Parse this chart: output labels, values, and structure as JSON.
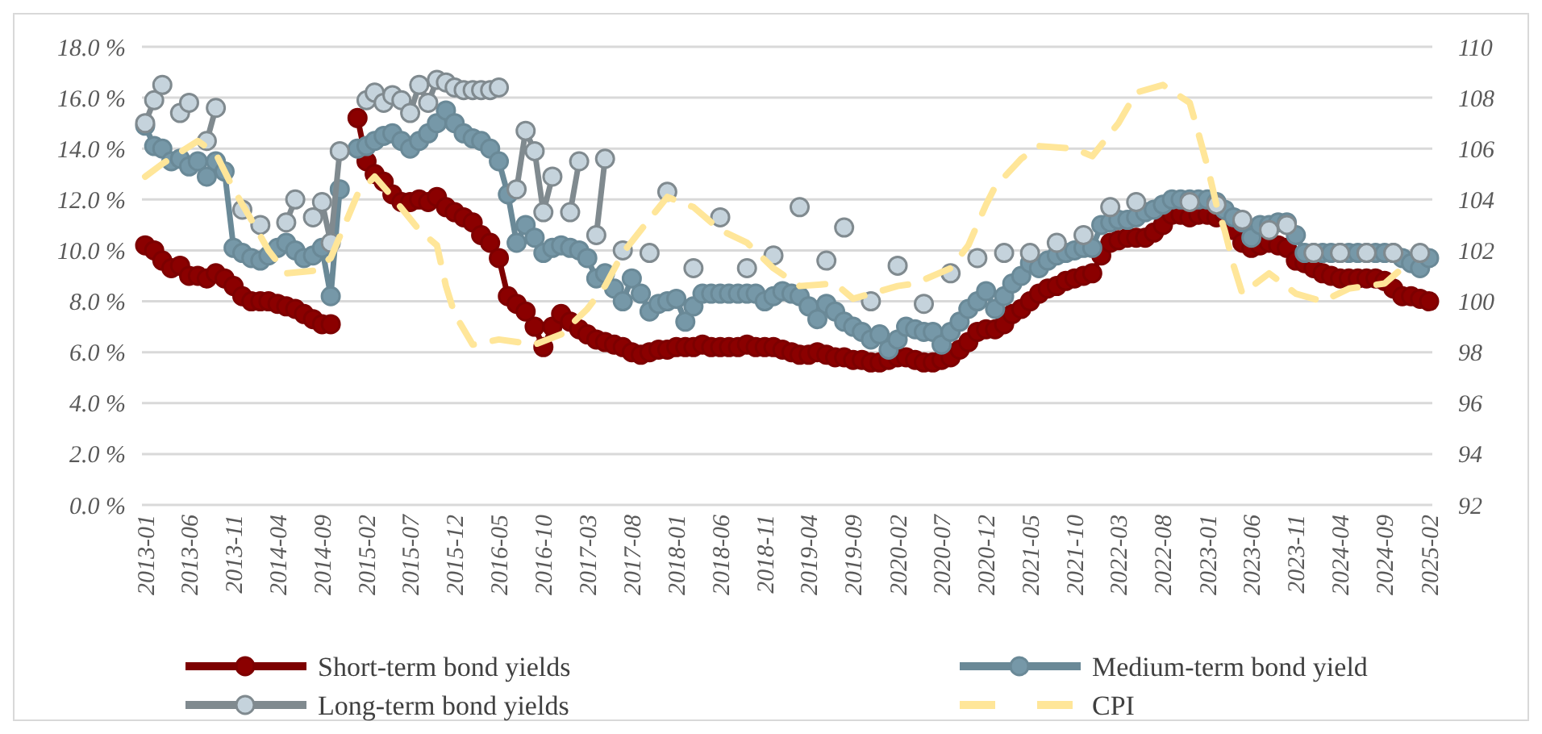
{
  "chart_data": {
    "type": "line",
    "x": [
      "2013-01",
      "2013-02",
      "2013-03",
      "2013-04",
      "2013-05",
      "2013-06",
      "2013-07",
      "2013-08",
      "2013-09",
      "2013-10",
      "2013-11",
      "2013-12",
      "2014-01",
      "2014-02",
      "2014-03",
      "2014-04",
      "2014-05",
      "2014-06",
      "2014-07",
      "2014-08",
      "2014-09",
      "2014-10",
      "2014-11",
      "2014-12",
      "2015-01",
      "2015-02",
      "2015-03",
      "2015-04",
      "2015-05",
      "2015-06",
      "2015-07",
      "2015-08",
      "2015-09",
      "2015-10",
      "2015-11",
      "2015-12",
      "2016-01",
      "2016-02",
      "2016-03",
      "2016-04",
      "2016-05",
      "2016-06",
      "2016-07",
      "2016-08",
      "2016-09",
      "2016-10",
      "2016-11",
      "2016-12",
      "2017-01",
      "2017-02",
      "2017-03",
      "2017-04",
      "2017-05",
      "2017-06",
      "2017-07",
      "2017-08",
      "2017-09",
      "2017-10",
      "2017-11",
      "2017-12",
      "2018-01",
      "2018-02",
      "2018-03",
      "2018-04",
      "2018-05",
      "2018-06",
      "2018-07",
      "2018-08",
      "2018-09",
      "2018-10",
      "2018-11",
      "2018-12",
      "2019-01",
      "2019-02",
      "2019-03",
      "2019-04",
      "2019-05",
      "2019-06",
      "2019-07",
      "2019-08",
      "2019-09",
      "2019-10",
      "2019-11",
      "2019-12",
      "2020-01",
      "2020-02",
      "2020-03",
      "2020-04",
      "2020-05",
      "2020-06",
      "2020-07",
      "2020-08",
      "2020-09",
      "2020-10",
      "2020-11",
      "2020-12",
      "2021-01",
      "2021-02",
      "2021-03",
      "2021-04",
      "2021-05",
      "2021-06",
      "2021-07",
      "2021-08",
      "2021-09",
      "2021-10",
      "2021-11",
      "2021-12",
      "2022-01",
      "2022-02",
      "2022-03",
      "2022-04",
      "2022-05",
      "2022-06",
      "2022-07",
      "2022-08",
      "2022-09",
      "2022-10",
      "2022-11",
      "2022-12",
      "2023-01",
      "2023-02",
      "2023-03",
      "2023-04",
      "2023-05",
      "2023-06",
      "2023-07",
      "2023-08",
      "2023-09",
      "2023-10",
      "2023-11",
      "2023-12",
      "2024-01",
      "2024-02",
      "2024-03",
      "2024-04",
      "2024-05",
      "2024-06",
      "2024-07",
      "2024-08",
      "2024-09",
      "2024-10",
      "2024-11",
      "2024-12",
      "2025-01",
      "2025-02"
    ],
    "xlim": [
      "2013-01",
      "2025-02"
    ],
    "xticks": [
      "2013-01",
      "2013-06",
      "2013-11",
      "2014-04",
      "2014-09",
      "2015-02",
      "2015-07",
      "2015-12",
      "2016-05",
      "2016-10",
      "2017-03",
      "2017-08",
      "2018-01",
      "2018-06",
      "2018-11",
      "2019-04",
      "2019-09",
      "2020-02",
      "2020-07",
      "2020-12",
      "2021-05",
      "2021-10",
      "2022-03",
      "2022-08",
      "2023-01",
      "2023-06",
      "2023-11",
      "2024-04",
      "2024-09",
      "2025-02"
    ],
    "ylim": [
      0,
      18
    ],
    "yticks": [
      {
        "value": 0,
        "label": "0.0 %"
      },
      {
        "value": 2,
        "label": "2.0 %"
      },
      {
        "value": 4,
        "label": "4.0 %"
      },
      {
        "value": 6,
        "label": "6.0 %"
      },
      {
        "value": 8,
        "label": "8.0 %"
      },
      {
        "value": 10,
        "label": "10.0 %"
      },
      {
        "value": 12,
        "label": "12.0 %"
      },
      {
        "value": 14,
        "label": "14.0 %"
      },
      {
        "value": 16,
        "label": "16.0 %"
      },
      {
        "value": 18,
        "label": "18.0 %"
      }
    ],
    "y2lim": [
      92,
      110
    ],
    "y2ticks": [
      92,
      94,
      96,
      98,
      100,
      102,
      104,
      106,
      108,
      110
    ],
    "grid": "y",
    "legend": "bottom",
    "marker": "circle",
    "line_style": "solid",
    "series": [
      {
        "name": "Short-term bond yields",
        "color": "#8b0000",
        "values": [
          10.2,
          10.0,
          9.6,
          9.3,
          9.4,
          9.0,
          9.0,
          8.9,
          9.1,
          8.9,
          8.6,
          8.2,
          8.0,
          8.0,
          8.0,
          7.9,
          7.8,
          7.7,
          7.5,
          7.3,
          7.1,
          7.1,
          null,
          null,
          15.2,
          13.5,
          13.0,
          12.7,
          12.2,
          11.9,
          11.9,
          12.0,
          11.9,
          12.1,
          11.7,
          11.5,
          11.3,
          11.1,
          10.6,
          10.3,
          9.7,
          8.2,
          7.9,
          7.6,
          7.0,
          6.2,
          7.0,
          7.5,
          7.2,
          6.9,
          6.7,
          6.5,
          6.4,
          6.3,
          6.2,
          6.0,
          5.9,
          6.0,
          6.1,
          6.1,
          6.2,
          6.2,
          6.2,
          6.3,
          6.2,
          6.2,
          6.2,
          6.2,
          6.3,
          6.2,
          6.2,
          6.2,
          6.1,
          6.0,
          5.9,
          5.9,
          6.0,
          5.9,
          5.8,
          5.8,
          5.7,
          5.7,
          5.6,
          5.6,
          5.7,
          5.8,
          5.8,
          5.7,
          5.6,
          5.6,
          5.7,
          5.8,
          6.1,
          6.4,
          6.8,
          6.9,
          6.9,
          7.1,
          7.5,
          7.7,
          8.0,
          8.3,
          8.5,
          8.6,
          8.8,
          8.9,
          9.0,
          9.1,
          9.8,
          10.3,
          10.4,
          10.5,
          10.5,
          10.5,
          10.7,
          11.0,
          11.4,
          11.4,
          11.3,
          11.4,
          11.4,
          11.3,
          11.4,
          10.8,
          10.3,
          10.1,
          10.2,
          10.3,
          10.2,
          10.1,
          9.6,
          9.5,
          9.3,
          9.1,
          9.0,
          8.9,
          8.9,
          8.9,
          8.9,
          8.9,
          8.8,
          8.5,
          8.2,
          8.2,
          8.1,
          8.0
        ]
      },
      {
        "name": "Medium-term bond yield",
        "color": "#7698a8",
        "values": [
          14.9,
          14.1,
          14.0,
          13.5,
          13.6,
          13.3,
          13.5,
          12.9,
          13.5,
          13.1,
          10.1,
          9.9,
          9.7,
          9.6,
          9.8,
          10.1,
          10.3,
          10.0,
          9.7,
          9.8,
          10.1,
          8.2,
          12.4,
          null,
          14.0,
          14.1,
          14.3,
          14.5,
          14.6,
          14.3,
          14.0,
          14.3,
          14.6,
          15.0,
          15.5,
          15.0,
          14.6,
          14.4,
          14.3,
          14.0,
          13.5,
          12.2,
          10.3,
          11.0,
          10.5,
          9.9,
          10.1,
          10.2,
          10.1,
          10.0,
          9.7,
          8.9,
          9.1,
          8.5,
          8.0,
          8.9,
          8.3,
          7.6,
          7.9,
          8.0,
          8.1,
          7.2,
          7.8,
          8.3,
          8.3,
          8.3,
          8.3,
          8.3,
          8.3,
          8.3,
          8.0,
          8.2,
          8.4,
          8.3,
          8.2,
          7.8,
          7.3,
          7.9,
          7.6,
          7.2,
          7.0,
          6.8,
          6.5,
          6.7,
          6.1,
          6.5,
          7.0,
          6.9,
          6.8,
          6.8,
          6.3,
          6.8,
          7.2,
          7.7,
          8.0,
          8.4,
          7.7,
          8.2,
          8.7,
          9.0,
          9.5,
          9.3,
          9.6,
          9.8,
          9.9,
          10.0,
          10.1,
          10.1,
          11.0,
          11.1,
          11.2,
          11.2,
          11.3,
          11.5,
          11.6,
          11.8,
          12.0,
          12.0,
          12.0,
          12.0,
          12.0,
          11.9,
          11.6,
          11.3,
          11.1,
          10.5,
          11.0,
          11.0,
          11.1,
          11.1,
          10.6,
          9.9,
          9.9,
          9.9,
          9.9,
          9.9,
          9.9,
          9.9,
          9.9,
          9.9,
          9.9,
          9.9,
          9.7,
          9.5,
          9.3,
          9.7
        ]
      },
      {
        "name": "Long-term bond yields",
        "color": "#c5d3dc",
        "values": [
          15.0,
          15.9,
          16.5,
          null,
          15.4,
          15.8,
          null,
          14.3,
          15.6,
          null,
          null,
          11.6,
          null,
          11.0,
          null,
          null,
          11.1,
          12.0,
          null,
          11.3,
          11.9,
          10.3,
          13.9,
          null,
          null,
          15.9,
          16.2,
          15.8,
          16.1,
          15.9,
          15.4,
          16.5,
          15.8,
          16.7,
          16.6,
          16.4,
          16.3,
          16.3,
          16.3,
          16.3,
          16.4,
          null,
          12.4,
          14.7,
          13.9,
          11.5,
          12.9,
          null,
          11.5,
          13.5,
          null,
          10.6,
          13.6,
          null,
          10.0,
          null,
          null,
          9.9,
          null,
          12.3,
          null,
          null,
          9.3,
          null,
          null,
          11.3,
          null,
          null,
          9.3,
          null,
          null,
          9.8,
          null,
          null,
          11.7,
          null,
          null,
          9.6,
          null,
          10.9,
          null,
          null,
          8.0,
          null,
          null,
          9.4,
          null,
          null,
          7.9,
          null,
          null,
          9.1,
          null,
          null,
          9.7,
          null,
          null,
          9.9,
          null,
          null,
          9.9,
          null,
          null,
          10.3,
          null,
          null,
          10.6,
          null,
          null,
          11.7,
          null,
          null,
          11.9,
          null,
          null,
          null,
          null,
          null,
          11.9,
          null,
          null,
          11.8,
          null,
          null,
          11.2,
          null,
          null,
          10.8,
          null,
          11.0,
          null,
          null,
          9.9,
          null,
          null,
          9.9,
          null,
          null,
          9.9,
          null,
          null,
          9.9,
          null,
          null,
          9.9,
          null
        ]
      },
      {
        "name": "CPI",
        "color": "#ffe699",
        "axis": "y2",
        "marker": "none",
        "line_style": "dashed",
        "x": [
          "2013-01",
          "2013-03",
          "2013-07",
          "2013-09",
          "2013-11",
          "2014-01",
          "2014-03",
          "2014-05",
          "2014-08",
          "2014-10",
          "2015-01",
          "2015-03",
          "2015-05",
          "2015-08",
          "2015-10",
          "2015-11",
          "2015-12",
          "2016-02",
          "2016-05",
          "2016-09",
          "2016-12",
          "2017-03",
          "2017-05",
          "2017-07",
          "2017-09",
          "2017-12",
          "2018-03",
          "2018-06",
          "2018-09",
          "2018-12",
          "2019-03",
          "2019-07",
          "2019-09",
          "2020-02",
          "2020-04",
          "2020-08",
          "2020-10",
          "2020-12",
          "2021-01",
          "2021-04",
          "2021-06",
          "2021-10",
          "2021-12",
          "2022-03",
          "2022-05",
          "2022-08",
          "2022-11",
          "2022-12",
          "2023-01",
          "2023-02",
          "2023-03",
          "2023-04",
          "2023-05",
          "2023-08",
          "2023-11",
          "2024-02",
          "2024-05",
          "2024-09",
          "2024-12"
        ],
        "values": [
          104.9,
          105.4,
          106.3,
          105.8,
          104.4,
          103.2,
          102.0,
          101.1,
          101.2,
          101.7,
          104.2,
          104.9,
          104.1,
          102.8,
          102.2,
          100.6,
          99.5,
          98.3,
          98.5,
          98.3,
          98.7,
          99.7,
          100.6,
          101.9,
          102.8,
          104.1,
          103.7,
          102.8,
          102.3,
          101.3,
          100.6,
          100.7,
          100.1,
          100.6,
          100.7,
          101.3,
          102.2,
          103.8,
          104.5,
          105.6,
          106.1,
          106.0,
          105.7,
          107.0,
          108.2,
          108.5,
          107.8,
          106.6,
          105.3,
          103.8,
          102.8,
          101.4,
          100.3,
          101.1,
          100.3,
          100.0,
          100.5,
          100.7,
          101.6
        ]
      }
    ]
  }
}
